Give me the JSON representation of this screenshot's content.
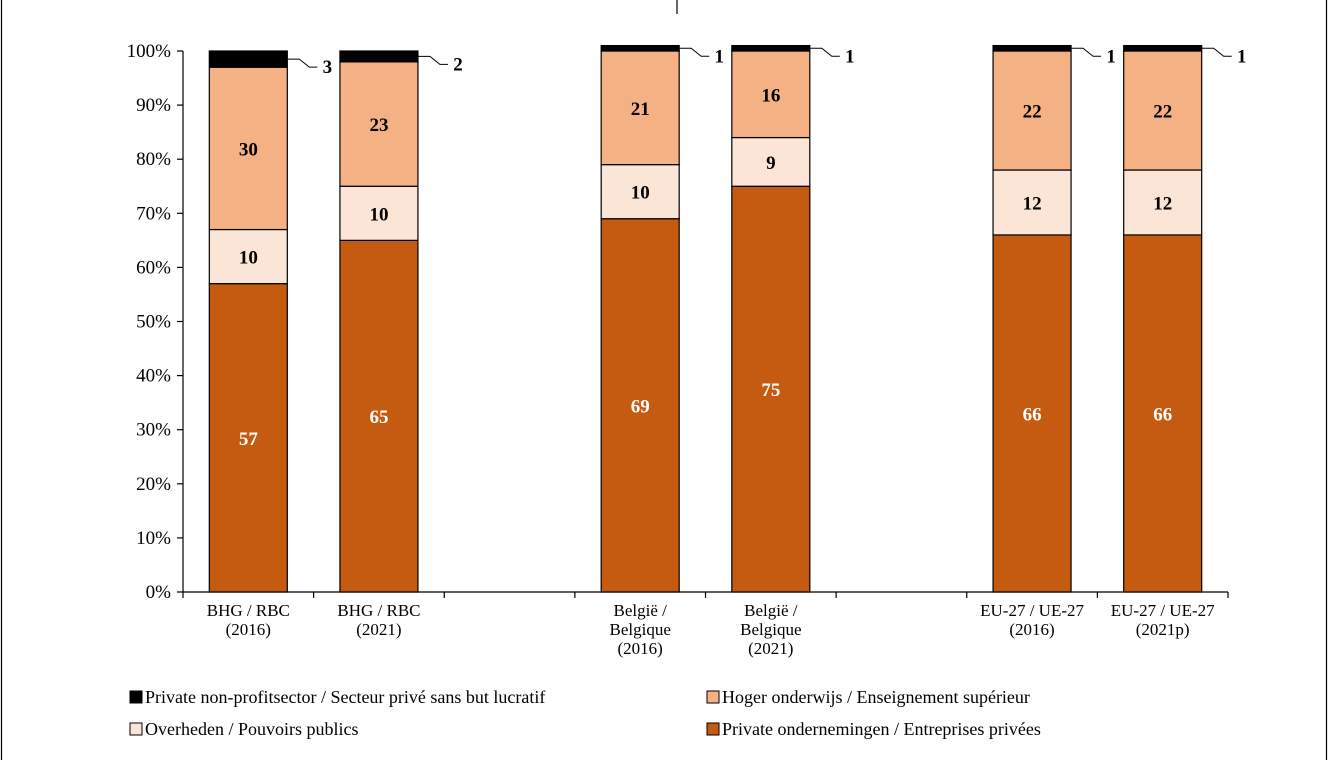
{
  "chart_data": {
    "type": "bar",
    "stacked": true,
    "percent": true,
    "categories": [
      [
        "BHG / RBC",
        "(2016)"
      ],
      [
        "BHG / RBC",
        "(2021)"
      ],
      [
        "België /",
        "Belgique",
        "(2016)"
      ],
      [
        "België /",
        "Belgique",
        "(2021)"
      ],
      [
        "EU-27 / UE-27",
        "(2016)"
      ],
      [
        "EU-27 / UE-27",
        "(2021p)"
      ]
    ],
    "series": [
      {
        "name": "Private ondernemingen / Entreprises privées",
        "color": "#C55A11",
        "label_color": "#ffffff",
        "values": [
          57,
          65,
          69,
          75,
          66,
          66
        ],
        "labels": [
          "57",
          "65",
          "69",
          "75",
          "66",
          "66"
        ]
      },
      {
        "name": "Overheden / Pouvoirs publics",
        "color": "#FBE5D6",
        "label_color": "#000000",
        "values": [
          10,
          10,
          10,
          9,
          12,
          12
        ],
        "labels": [
          "10",
          "10",
          "10",
          "9",
          "12",
          "12"
        ]
      },
      {
        "name": "Hoger onderwijs / Enseignement supérieur",
        "color": "#F4B183",
        "label_color": "#000000",
        "values": [
          30,
          23,
          21,
          16,
          22,
          22
        ],
        "labels": [
          "30",
          "23",
          "21",
          "16",
          "22",
          "22"
        ]
      },
      {
        "name": "Private non-profitsector / Secteur privé sans but lucratif",
        "color": "#000000",
        "label_color": "#000000",
        "values": [
          3,
          2,
          1,
          1,
          1,
          1
        ],
        "labels": [
          "3",
          "2",
          "1",
          "1",
          "1",
          "1"
        ]
      }
    ],
    "yticks": [
      "0%",
      "10%",
      "20%",
      "30%",
      "40%",
      "50%",
      "60%",
      "70%",
      "80%",
      "90%",
      "100%"
    ],
    "ylim": [
      0,
      100
    ],
    "grid": false,
    "legend_position": "bottom",
    "legend_order": [
      3,
      2,
      1,
      0
    ]
  }
}
